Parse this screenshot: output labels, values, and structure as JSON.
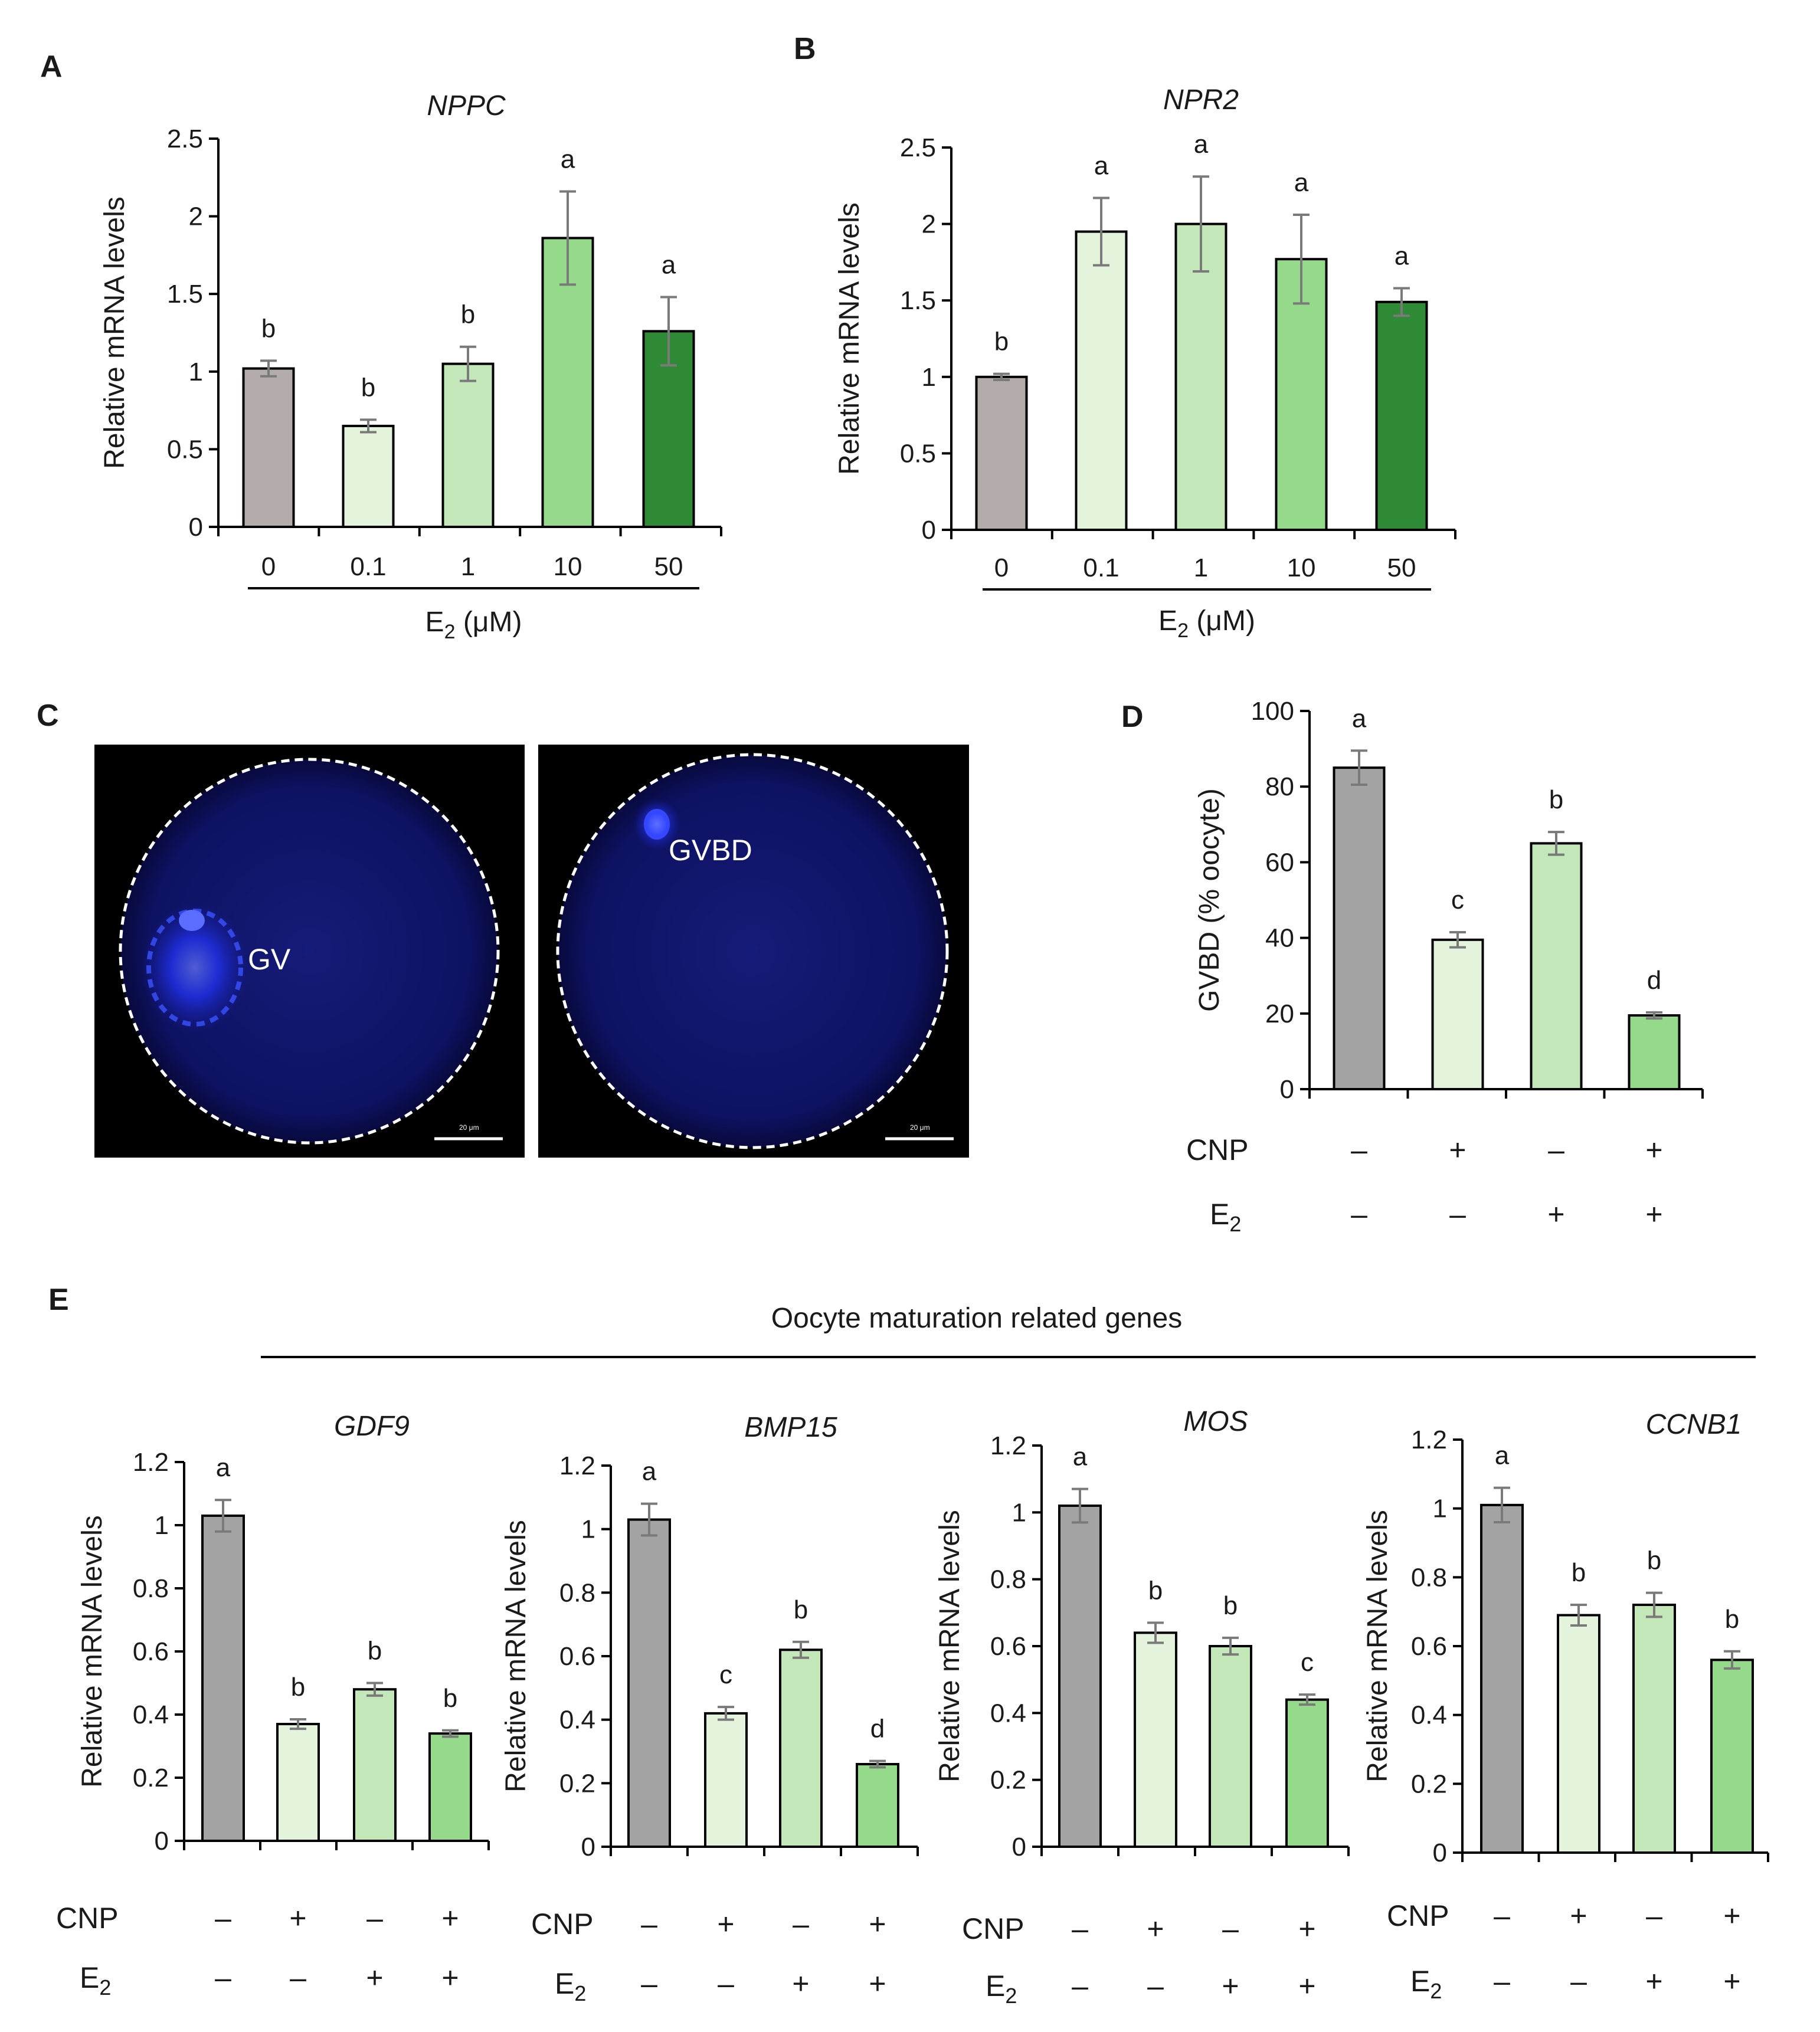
{
  "panels": {
    "A": "A",
    "B": "B",
    "C": "C",
    "D": "D",
    "E": "E"
  },
  "colors": {
    "grey": "#b3acab",
    "grey_dark": "#a3a3a3",
    "green_1": "#e4f4dc",
    "green_2": "#c3e7b9",
    "green_3": "#95d98a",
    "green_4": "#2f8a36",
    "error_bar": "#7a7a7a"
  },
  "dose_axis": {
    "title_main": "E",
    "title_sub": "2",
    "title_rest": " (μM)"
  },
  "treatment_labels": {
    "cnp": "CNP",
    "e2_main": "E",
    "e2_sub": "2",
    "minus": "–",
    "plus": "+"
  },
  "panel_c": {
    "left_label": "GV",
    "right_label": "GVBD",
    "scale_text": "20 μm"
  },
  "panel_e_header": "Oocyte maturation related genes",
  "chart_data": [
    {
      "id": "A",
      "type": "bar",
      "title": "NPPC",
      "categories": [
        "0",
        "0.1",
        "1",
        "10",
        "50"
      ],
      "values": [
        1.02,
        0.65,
        1.05,
        1.86,
        1.26
      ],
      "errors": [
        0.05,
        0.04,
        0.11,
        0.3,
        0.22
      ],
      "significance": [
        "b",
        "b",
        "b",
        "a",
        "a"
      ],
      "ylabel": "Relative mRNA levels",
      "ylim": [
        0,
        2.5
      ],
      "yticks": [
        "0",
        "0.5",
        "1",
        "1.5",
        "2",
        "2.5"
      ],
      "xlabel": "E2 (μM)"
    },
    {
      "id": "B",
      "type": "bar",
      "title": "NPR2",
      "categories": [
        "0",
        "0.1",
        "1",
        "10",
        "50"
      ],
      "values": [
        1.0,
        1.95,
        2.0,
        1.77,
        1.49
      ],
      "errors": [
        0.02,
        0.22,
        0.31,
        0.29,
        0.09
      ],
      "significance": [
        "b",
        "a",
        "a",
        "a",
        "a"
      ],
      "ylabel": "Relative mRNA levels",
      "ylim": [
        0,
        2.5
      ],
      "yticks": [
        "0",
        "0.5",
        "1",
        "1.5",
        "2",
        "2.5"
      ],
      "xlabel": "E2 (μM)"
    },
    {
      "id": "D",
      "type": "bar",
      "title": "",
      "treatments": {
        "CNP": [
          "–",
          "+",
          "–",
          "+"
        ],
        "E2": [
          "–",
          "–",
          "+",
          "+"
        ]
      },
      "values": [
        85,
        39.5,
        65,
        19.5
      ],
      "errors": [
        4.5,
        2,
        3,
        0.8
      ],
      "significance": [
        "a",
        "c",
        "b",
        "d"
      ],
      "ylabel": "GVBD (% oocyte)",
      "ylim": [
        0,
        100
      ],
      "yticks": [
        "0",
        "20",
        "40",
        "60",
        "80",
        "100"
      ]
    },
    {
      "id": "E1",
      "type": "bar",
      "title": "GDF9",
      "treatments": {
        "CNP": [
          "–",
          "+",
          "–",
          "+"
        ],
        "E2": [
          "–",
          "–",
          "+",
          "+"
        ]
      },
      "values": [
        1.03,
        0.37,
        0.48,
        0.34
      ],
      "errors": [
        0.05,
        0.015,
        0.02,
        0.01
      ],
      "significance": [
        "a",
        "b",
        "b",
        "b"
      ],
      "ylabel": "Relative mRNA levels",
      "ylim": [
        0,
        1.2
      ],
      "yticks": [
        "0",
        "0.2",
        "0.4",
        "0.6",
        "0.8",
        "1",
        "1.2"
      ]
    },
    {
      "id": "E2",
      "type": "bar",
      "title": "BMP15",
      "treatments": {
        "CNP": [
          "–",
          "+",
          "–",
          "+"
        ],
        "E2": [
          "–",
          "–",
          "+",
          "+"
        ]
      },
      "values": [
        1.03,
        0.42,
        0.62,
        0.26
      ],
      "errors": [
        0.05,
        0.02,
        0.025,
        0.01
      ],
      "significance": [
        "a",
        "c",
        "b",
        "d"
      ],
      "ylabel": "Relative mRNA levels",
      "ylim": [
        0,
        1.2
      ],
      "yticks": [
        "0",
        "0.2",
        "0.4",
        "0.6",
        "0.8",
        "1",
        "1.2"
      ]
    },
    {
      "id": "E3",
      "type": "bar",
      "title": "MOS",
      "treatments": {
        "CNP": [
          "–",
          "+",
          "–",
          "+"
        ],
        "E2": [
          "–",
          "–",
          "+",
          "+"
        ]
      },
      "values": [
        1.02,
        0.64,
        0.6,
        0.44
      ],
      "errors": [
        0.05,
        0.03,
        0.025,
        0.015
      ],
      "significance": [
        "a",
        "b",
        "b",
        "c"
      ],
      "ylabel": "Relative mRNA levels",
      "ylim": [
        0,
        1.2
      ],
      "yticks": [
        "0",
        "0.2",
        "0.4",
        "0.6",
        "0.8",
        "1",
        "1.2"
      ]
    },
    {
      "id": "E4",
      "type": "bar",
      "title": "CCNB1",
      "treatments": {
        "CNP": [
          "–",
          "+",
          "–",
          "+"
        ],
        "E2": [
          "–",
          "–",
          "+",
          "+"
        ]
      },
      "values": [
        1.01,
        0.69,
        0.72,
        0.56
      ],
      "errors": [
        0.05,
        0.03,
        0.035,
        0.025
      ],
      "significance": [
        "a",
        "b",
        "b",
        "b"
      ],
      "ylabel": "Relative mRNA levels",
      "ylim": [
        0,
        1.2
      ],
      "yticks": [
        "0",
        "0.2",
        "0.4",
        "0.6",
        "0.8",
        "1",
        "1.2"
      ]
    }
  ]
}
